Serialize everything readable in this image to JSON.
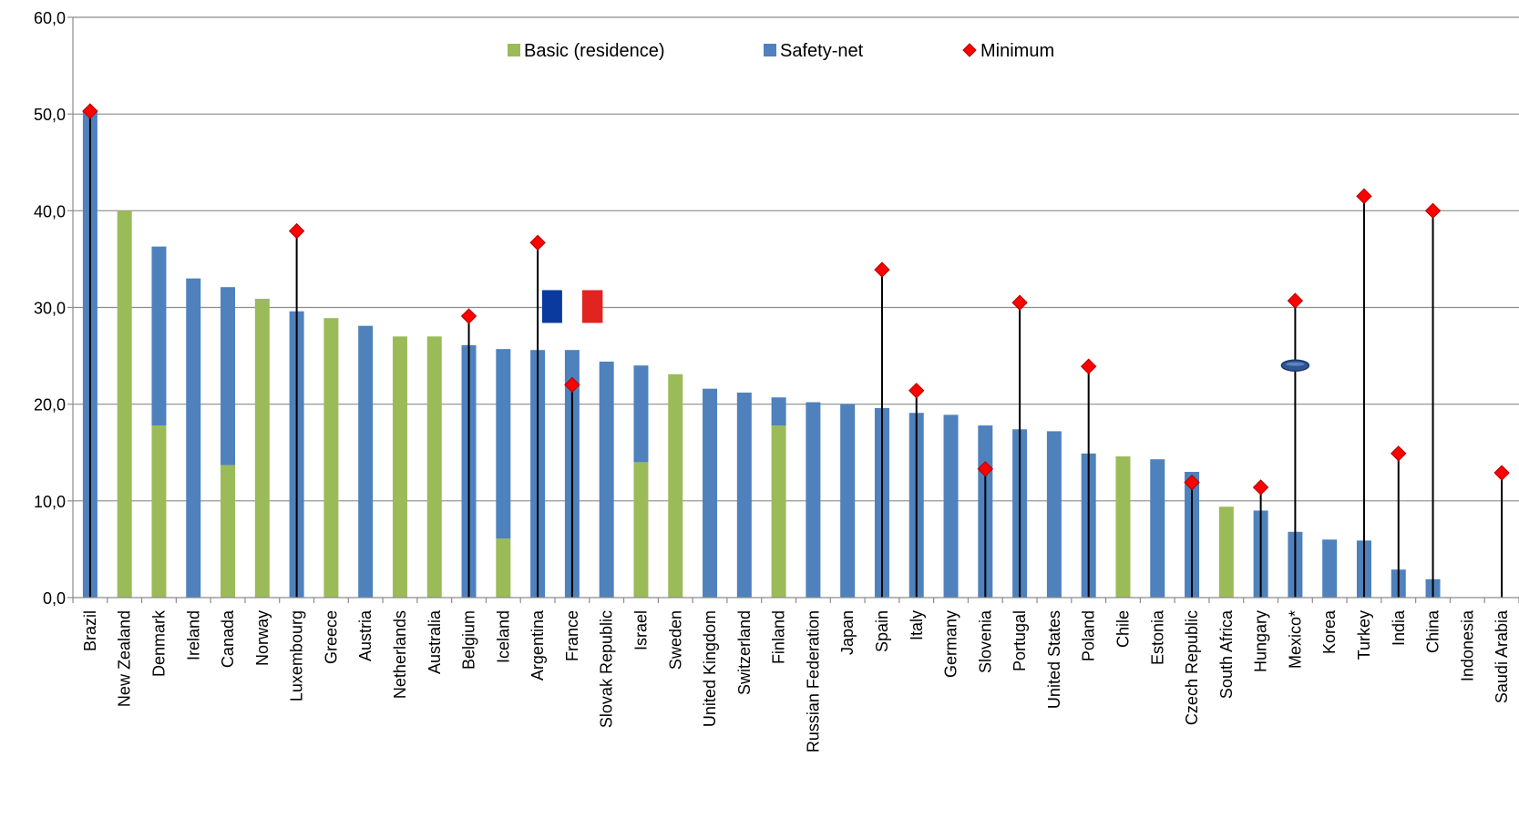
{
  "chart_data": {
    "type": "bar",
    "stacked": true,
    "categories": [
      "Brazil",
      "New Zealand",
      "Denmark",
      "Ireland",
      "Canada",
      "Norway",
      "Luxembourg",
      "Greece",
      "Austria",
      "Netherlands",
      "Australia",
      "Belgium",
      "Iceland",
      "Argentina",
      "France",
      "Slovak Republic",
      "Israel",
      "Sweden",
      "United Kingdom",
      "Switzerland",
      "Finland",
      "Russian Federation",
      "Japan",
      "Spain",
      "Italy",
      "Germany",
      "Slovenia",
      "Portugal",
      "United States",
      "Poland",
      "Chile",
      "Estonia",
      "Czech Republic",
      "South Africa",
      "Hungary",
      "Mexico*",
      "Korea",
      "Turkey",
      "India",
      "China",
      "Indonesia",
      "Saudi Arabia"
    ],
    "series": [
      {
        "name": "Basic (residence)",
        "color": "#9bbb59",
        "values": [
          0,
          40.0,
          17.8,
          0,
          13.7,
          30.9,
          0,
          28.9,
          0,
          27.0,
          27.0,
          0,
          6.1,
          0,
          0,
          0,
          14.0,
          23.1,
          0,
          0,
          17.8,
          0,
          0,
          0,
          0,
          0,
          0,
          0,
          0,
          0,
          14.6,
          0,
          0,
          9.4,
          0,
          0,
          0,
          0,
          0,
          0,
          0,
          0
        ]
      },
      {
        "name": "Safety-net",
        "color": "#4f81bd",
        "values": [
          50.3,
          0,
          18.5,
          33.0,
          18.4,
          0,
          29.6,
          0,
          28.1,
          0,
          0,
          26.1,
          19.6,
          25.6,
          25.6,
          24.4,
          10.0,
          0,
          21.6,
          21.2,
          2.9,
          20.2,
          20.0,
          19.6,
          19.1,
          18.9,
          17.8,
          17.4,
          17.2,
          14.9,
          0,
          14.3,
          13.0,
          0,
          9.0,
          6.8,
          6.0,
          5.9,
          2.9,
          1.9,
          0,
          0
        ]
      },
      {
        "name": "Minimum",
        "type": "marker",
        "color": "#ff0000",
        "values": [
          50.3,
          null,
          null,
          null,
          null,
          null,
          37.9,
          null,
          null,
          null,
          null,
          29.1,
          null,
          36.7,
          22.0,
          null,
          null,
          null,
          null,
          null,
          null,
          null,
          null,
          33.9,
          21.4,
          null,
          13.3,
          30.5,
          null,
          23.9,
          null,
          null,
          11.9,
          null,
          11.4,
          30.7,
          null,
          41.5,
          14.9,
          40.0,
          null,
          12.9
        ]
      }
    ],
    "ylim": [
      0,
      60
    ],
    "yticks": [
      0,
      10,
      20,
      30,
      40,
      50,
      60
    ],
    "ytick_labels": [
      "0,0",
      "10,0",
      "20,0",
      "30,0",
      "40,0",
      "50,0",
      "60,0"
    ],
    "grid": true,
    "legend_position": "top-center",
    "annotations": [
      {
        "type": "flag",
        "country": "France",
        "colors": [
          "#0b3a9e",
          "#ffffff",
          "#e1241f"
        ],
        "value": 30.0
      },
      {
        "type": "ellipse-marker",
        "country": "Mexico*",
        "color": "#2e5597",
        "value": 24.0
      }
    ]
  }
}
